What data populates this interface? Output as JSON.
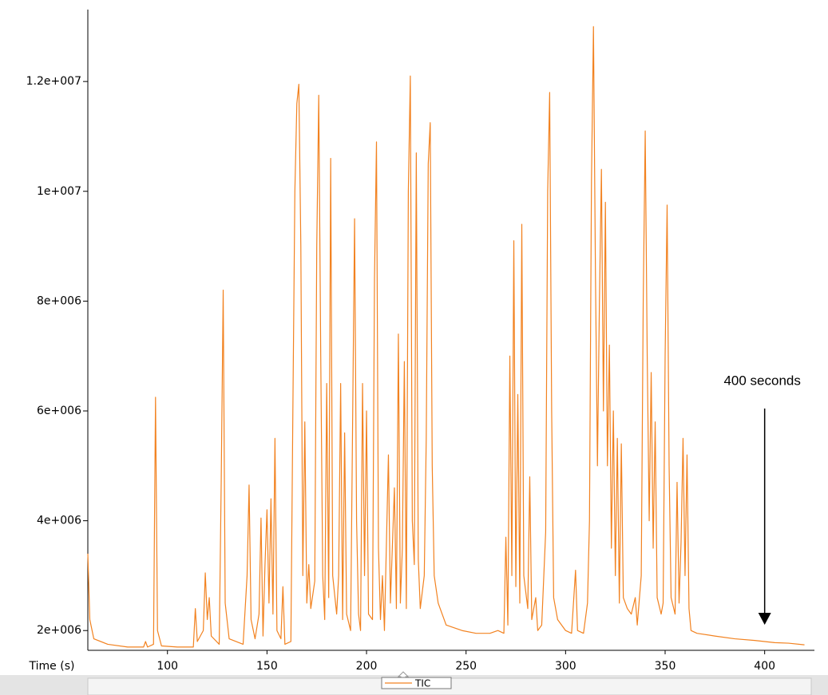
{
  "chart_data": {
    "type": "line",
    "x_label": "Time (s)",
    "annotation": "400 seconds",
    "annotation_x": 400,
    "legend": "bottom",
    "xlim": [
      60,
      425
    ],
    "ylim": [
      1640000.0,
      13310000.0
    ],
    "xticks": [
      100,
      150,
      200,
      250,
      300,
      350,
      400
    ],
    "yticks": [
      {
        "value": 2000000.0,
        "label": "2e+006"
      },
      {
        "value": 4000000.0,
        "label": "4e+006"
      },
      {
        "value": 6000000.0,
        "label": "6e+006"
      },
      {
        "value": 8000000.0,
        "label": "8e+006"
      },
      {
        "value": 10000000.0,
        "label": "1e+007"
      },
      {
        "value": 12000000.0,
        "label": "1.2e+007"
      }
    ],
    "x": [
      60,
      61,
      63,
      70,
      80,
      88,
      89,
      90,
      93,
      94,
      95,
      97,
      105,
      113,
      114,
      115,
      118,
      119,
      120,
      121,
      122,
      126,
      127,
      128,
      129,
      131,
      138,
      140,
      141,
      142,
      144,
      146,
      147,
      148,
      149,
      150,
      151,
      152,
      153,
      154,
      155,
      157,
      158,
      159,
      162,
      163,
      164,
      165,
      166,
      167,
      168,
      169,
      170,
      171,
      172,
      174,
      175,
      176,
      177,
      178,
      179,
      180,
      181,
      182,
      183,
      185,
      186,
      187,
      188,
      189,
      190,
      192,
      194,
      195,
      196,
      197,
      198,
      199,
      200,
      201,
      203,
      204,
      205,
      206,
      207,
      208,
      209,
      211,
      212,
      214,
      215,
      216,
      217,
      218,
      219,
      220,
      221,
      222,
      223,
      224,
      225,
      226,
      227,
      229,
      230,
      231,
      232,
      233,
      234,
      236,
      240,
      248,
      255,
      262,
      266,
      269,
      270,
      271,
      272,
      273,
      274,
      275,
      276,
      277,
      278,
      279,
      281,
      282,
      283,
      285,
      286,
      288,
      290,
      291,
      292,
      293,
      294,
      296,
      300,
      303,
      305,
      306,
      309,
      311,
      312,
      313,
      314,
      315,
      316,
      317,
      318,
      319,
      320,
      321,
      322,
      323,
      324,
      325,
      326,
      327,
      328,
      329,
      331,
      333,
      335,
      336,
      338,
      339,
      340,
      341,
      342,
      343,
      344,
      345,
      346,
      348,
      349,
      350,
      351,
      352,
      353,
      355,
      356,
      357,
      358,
      359,
      360,
      361,
      362,
      363,
      366,
      375,
      385,
      395,
      405,
      412,
      420
    ],
    "series": [
      {
        "name": "TIC",
        "color": "#f28220",
        "values": [
          3400000.0,
          2200000.0,
          1850000.0,
          1750000.0,
          1700000.0,
          1700000.0,
          1800000.0,
          1700000.0,
          1750000.0,
          6250000.0,
          2000000.0,
          1720000.0,
          1700000.0,
          1700000.0,
          2400000.0,
          1800000.0,
          2000000.0,
          3050000.0,
          2200000.0,
          2600000.0,
          1900000.0,
          1750000.0,
          4700000.0,
          8200000.0,
          2500000.0,
          1850000.0,
          1750000.0,
          3000000.0,
          4650000.0,
          2200000.0,
          1850000.0,
          2300000.0,
          4050000.0,
          1900000.0,
          3200000.0,
          4200000.0,
          2500000.0,
          4400000.0,
          2300000.0,
          5500000.0,
          2000000.0,
          1850000.0,
          2800000.0,
          1750000.0,
          1800000.0,
          6000000.0,
          10000000.0,
          11600000.0,
          11950000.0,
          9000000.0,
          3000000.0,
          5800000.0,
          2500000.0,
          3200000.0,
          2400000.0,
          2900000.0,
          9000000.0,
          11750000.0,
          7000000.0,
          3000000.0,
          2200000.0,
          6500000.0,
          2600000.0,
          10600000.0,
          3000000.0,
          2300000.0,
          3000000.0,
          6500000.0,
          2200000.0,
          5600000.0,
          2300000.0,
          2000000.0,
          9500000.0,
          4000000.0,
          2300000.0,
          2000000.0,
          6500000.0,
          3000000.0,
          6000000.0,
          2300000.0,
          2200000.0,
          8400000.0,
          10900000.0,
          3500000.0,
          2200000.0,
          3000000.0,
          2000000.0,
          5200000.0,
          2500000.0,
          4600000.0,
          2400000.0,
          7400000.0,
          2500000.0,
          3500000.0,
          6900000.0,
          2400000.0,
          10000000.0,
          12100000.0,
          4000000.0,
          3200000.0,
          10700000.0,
          3300000.0,
          2400000.0,
          3000000.0,
          5500000.0,
          10500000.0,
          11250000.0,
          5000000.0,
          3000000.0,
          2500000.0,
          2100000.0,
          2000000.0,
          1950000.0,
          1950000.0,
          2000000.0,
          1950000.0,
          3700000.0,
          2100000.0,
          7000000.0,
          3000000.0,
          9100000.0,
          2800000.0,
          6300000.0,
          2500000.0,
          9400000.0,
          3000000.0,
          2400000.0,
          4800000.0,
          2200000.0,
          2600000.0,
          2000000.0,
          2100000.0,
          3800000.0,
          10000000.0,
          11800000.0,
          6000000.0,
          2600000.0,
          2200000.0,
          2000000.0,
          1950000.0,
          3100000.0,
          2000000.0,
          1950000.0,
          2500000.0,
          4000000.0,
          10200000.0,
          13000000.0,
          8500000.0,
          5000000.0,
          8000000.0,
          10400000.0,
          6000000.0,
          9800000.0,
          5000000.0,
          7200000.0,
          3500000.0,
          6000000.0,
          3000000.0,
          5500000.0,
          2500000.0,
          5400000.0,
          2600000.0,
          2400000.0,
          2300000.0,
          2600000.0,
          2100000.0,
          3000000.0,
          8000000.0,
          11100000.0,
          7000000.0,
          4000000.0,
          6700000.0,
          3500000.0,
          5800000.0,
          2600000.0,
          2300000.0,
          2500000.0,
          7000000.0,
          9750000.0,
          5000000.0,
          2600000.0,
          2300000.0,
          4700000.0,
          2500000.0,
          3600000.0,
          5500000.0,
          3000000.0,
          5200000.0,
          2400000.0,
          2000000.0,
          1950000.0,
          1900000.0,
          1850000.0,
          1820000.0,
          1780000.0,
          1770000.0,
          1740000.0
        ]
      }
    ]
  }
}
